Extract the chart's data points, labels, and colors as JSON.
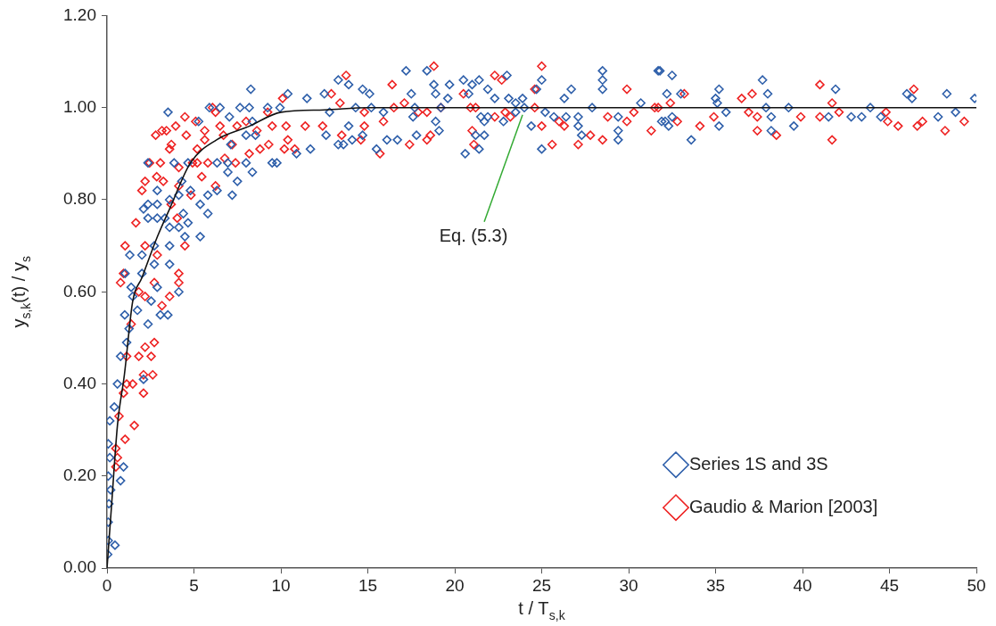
{
  "chart_data": {
    "type": "scatter",
    "xlabel": "t / T$_{s,k}$",
    "ylabel": "y$_{s,k}$(t) / y$_{s}$",
    "xlim": [
      0,
      50
    ],
    "xticks": [
      0,
      5,
      10,
      15,
      20,
      25,
      30,
      35,
      40,
      45,
      50
    ],
    "ylim": [
      0,
      1.2
    ],
    "yticks": [
      {
        "value": 0,
        "label": "0.00"
      },
      {
        "value": 0.2,
        "label": "0.20"
      },
      {
        "value": 0.4,
        "label": "0.40"
      },
      {
        "value": 0.6,
        "label": "0.60"
      },
      {
        "value": 0.8,
        "label": "0.80"
      },
      {
        "value": 1,
        "label": "1.00"
      },
      {
        "value": 1.2,
        "label": "1.20"
      }
    ],
    "grid": false,
    "legend": "bottom right",
    "marker": "diamond",
    "annotations": [
      {
        "text": "Eq. (5.3)",
        "x": 23.9,
        "y": 1.0
      }
    ],
    "series": [
      {
        "name": "Series 1S and 3S",
        "color": "#2e5faa",
        "x": [
          0.04,
          0.07,
          0.46,
          0.07,
          0.11,
          0.21,
          0.07,
          0.78,
          0.95,
          0.07,
          0.16,
          0.16,
          0.42,
          0.6,
          0.78,
          1.13,
          1.27,
          1.02,
          1.48,
          1.75,
          2.1,
          2.36,
          2.54,
          3.07,
          3.5,
          4.13,
          2.89,
          1.39,
          1.04,
          1.31,
          2.01,
          2.01,
          2.72,
          3.6,
          2.72,
          3.6,
          4.48,
          5.36,
          2.1,
          2.36,
          2.89,
          2.36,
          2.89,
          3.33,
          3.6,
          4.13,
          4.66,
          4.39,
          2.89,
          3.6,
          4.13,
          4.3,
          4.8,
          5.36,
          5.8,
          5.8,
          6.33,
          7.2,
          7.5,
          6.95,
          8.36,
          2.36,
          3.86,
          4.66,
          6.33,
          6.95,
          8.0,
          9.5,
          9.77,
          3.51,
          5.27,
          5.89,
          6.5,
          7.65,
          8.18,
          7.04,
          8.36,
          7.12,
          8.0,
          8.54,
          9.24,
          9.95,
          10.4,
          8.27,
          11.5,
          12.5,
          10.9,
          11.7,
          12.6,
          12.8,
          13.3,
          13.3,
          13.9,
          14.7,
          15.1,
          14.3,
          15.2,
          15.9,
          13.9,
          13.6,
          14.1,
          14.7,
          15.5,
          16.1,
          16.7,
          17.2,
          18.4,
          18.8,
          19.7,
          17.5,
          17.7,
          18.9,
          19.6,
          17.6,
          17.8,
          18.9,
          19.1,
          19.2,
          20.5,
          21.0,
          21.4,
          20.8,
          21.9,
          22.3,
          23.0,
          23.1,
          23.5,
          23.9,
          23.5,
          24.0,
          21.5,
          21.7,
          21.9,
          22.8,
          21.2,
          21.7,
          21.4,
          20.6,
          24.4,
          25.0,
          24.7,
          25.2,
          25.7,
          26.4,
          27.1,
          27.1,
          26.3,
          26.7,
          27.3,
          27.9,
          25.0,
          29.4,
          29.4,
          29.4,
          28.5,
          28.5,
          28.5,
          30.7,
          31.7,
          31.9,
          31.8,
          32.5,
          32.2,
          33.0,
          32.1,
          32.3,
          32.5,
          33.6,
          35.0,
          35.2,
          35.1,
          35.6,
          35.2,
          37.7,
          38.0,
          37.9,
          38.2,
          38.2,
          39.2,
          39.5,
          41.5,
          41.9,
          42.8,
          43.4,
          43.9,
          44.5,
          46.0,
          46.3,
          47.8,
          48.3,
          48.8,
          49.9
        ],
        "values": [
          0.03,
          0.06,
          0.05,
          0.1,
          0.14,
          0.17,
          0.2,
          0.19,
          0.22,
          0.27,
          0.24,
          0.32,
          0.35,
          0.4,
          0.46,
          0.49,
          0.52,
          0.55,
          0.59,
          0.56,
          0.41,
          0.53,
          0.58,
          0.55,
          0.55,
          0.6,
          0.61,
          0.61,
          0.64,
          0.68,
          0.68,
          0.64,
          0.66,
          0.66,
          0.7,
          0.7,
          0.72,
          0.72,
          0.78,
          0.79,
          0.79,
          0.76,
          0.76,
          0.76,
          0.74,
          0.74,
          0.75,
          0.77,
          0.82,
          0.8,
          0.81,
          0.84,
          0.82,
          0.79,
          0.77,
          0.81,
          0.82,
          0.81,
          0.84,
          0.86,
          0.86,
          0.88,
          0.88,
          0.88,
          0.88,
          0.88,
          0.88,
          0.88,
          0.88,
          0.99,
          0.97,
          1.0,
          1.0,
          1.0,
          1.0,
          0.98,
          0.97,
          0.92,
          0.94,
          0.94,
          1.0,
          1.0,
          1.03,
          1.04,
          1.02,
          1.03,
          0.9,
          0.91,
          0.94,
          0.99,
          0.92,
          1.06,
          1.05,
          1.04,
          1.03,
          1.0,
          1.0,
          0.99,
          0.96,
          0.92,
          0.93,
          0.94,
          0.91,
          0.93,
          0.93,
          1.08,
          1.08,
          1.05,
          1.05,
          1.03,
          1.0,
          1.03,
          1.02,
          0.98,
          0.94,
          0.97,
          0.95,
          1.0,
          1.06,
          1.05,
          1.06,
          1.03,
          1.04,
          1.02,
          1.07,
          1.02,
          1.01,
          1.02,
          0.99,
          1.0,
          0.98,
          0.97,
          0.98,
          0.97,
          0.94,
          0.94,
          0.91,
          0.9,
          0.96,
          1.06,
          1.04,
          0.99,
          0.98,
          0.98,
          0.98,
          0.96,
          1.02,
          1.04,
          0.94,
          1.0,
          0.91,
          0.95,
          0.93,
          0.98,
          1.08,
          1.06,
          1.04,
          1.01,
          1.08,
          0.97,
          1.08,
          1.07,
          1.03,
          1.03,
          0.97,
          0.96,
          0.98,
          0.93,
          1.02,
          1.04,
          1.01,
          0.99,
          0.96,
          1.06,
          1.03,
          1.0,
          0.98,
          0.95,
          1.0,
          0.96,
          0.98,
          1.04,
          0.98,
          0.98,
          1.0,
          0.98,
          1.03,
          1.02,
          0.98,
          1.03,
          0.99,
          1.02
        ]
      },
      {
        "name": "Gaudio & Marion [2003]",
        "color": "#ee2222",
        "x": [
          0.51,
          0.6,
          0.51,
          0.69,
          1.04,
          1.57,
          0.95,
          1.13,
          1.48,
          2.1,
          2.1,
          2.63,
          1.13,
          1.83,
          2.54,
          2.19,
          2.72,
          1.39,
          1.83,
          2.19,
          2.72,
          3.16,
          3.6,
          4.13,
          4.13,
          0.78,
          0.95,
          1.04,
          2.19,
          2.89,
          4.48,
          1.66,
          4.04,
          3.69,
          2.01,
          4.13,
          4.83,
          6.24,
          2.19,
          2.86,
          3.24,
          5.45,
          2.45,
          3.07,
          4.13,
          4.92,
          5.19,
          5.8,
          6.77,
          7.39,
          8.18,
          8.8,
          9.3,
          10.2,
          10.8,
          2.8,
          3.16,
          3.42,
          3.6,
          3.7,
          3.95,
          4.48,
          4.56,
          5.19,
          5.1,
          5.62,
          5.62,
          6.07,
          6.24,
          6.5,
          6.7,
          7.2,
          7.48,
          8.0,
          8.62,
          9.24,
          9.5,
          10.1,
          10.3,
          10.4,
          11.4,
          12.4,
          12.9,
          13.75,
          18.8,
          16.4,
          13.4,
          14.8,
          14.8,
          13.5,
          14.6,
          15.7,
          15.9,
          16.5,
          17.1,
          17.4,
          17.9,
          18.4,
          18.4,
          18.6,
          19.2,
          20.5,
          20.9,
          21.2,
          21.0,
          21.1,
          22.3,
          22.7,
          22.3,
          22.9,
          23.2,
          24.6,
          25.0,
          24.6,
          25.0,
          26.0,
          26.3,
          25.6,
          27.1,
          27.8,
          28.5,
          28.8,
          29.9,
          29.9,
          30.3,
          31.3,
          31.5,
          31.7,
          32.4,
          33.2,
          32.8,
          34.1,
          34.9,
          36.5,
          37.1,
          36.9,
          37.4,
          37.4,
          38.5,
          39.9,
          41.0,
          41.0,
          41.7,
          41.7,
          42.1,
          44.8,
          44.9,
          45.5,
          46.4,
          46.6,
          46.9,
          48.2,
          49.3
        ],
        "values": [
          0.22,
          0.24,
          0.26,
          0.33,
          0.28,
          0.31,
          0.38,
          0.4,
          0.4,
          0.38,
          0.42,
          0.42,
          0.46,
          0.46,
          0.46,
          0.48,
          0.49,
          0.53,
          0.6,
          0.59,
          0.62,
          0.57,
          0.59,
          0.62,
          0.64,
          0.62,
          0.64,
          0.7,
          0.7,
          0.68,
          0.7,
          0.75,
          0.76,
          0.79,
          0.82,
          0.83,
          0.81,
          0.83,
          0.84,
          0.85,
          0.84,
          0.85,
          0.88,
          0.88,
          0.87,
          0.88,
          0.88,
          0.88,
          0.89,
          0.88,
          0.9,
          0.91,
          0.92,
          0.91,
          0.91,
          0.94,
          0.95,
          0.95,
          0.91,
          0.92,
          0.96,
          0.98,
          0.94,
          0.91,
          0.97,
          0.95,
          0.93,
          1.0,
          0.99,
          0.96,
          0.94,
          0.92,
          0.96,
          0.97,
          0.95,
          0.99,
          0.96,
          1.02,
          0.96,
          0.93,
          0.96,
          0.96,
          1.03,
          1.07,
          1.09,
          1.05,
          1.01,
          0.99,
          0.96,
          0.94,
          0.93,
          0.9,
          0.97,
          1.0,
          1.01,
          0.92,
          0.99,
          0.99,
          0.93,
          0.94,
          1.0,
          1.03,
          1.0,
          1.0,
          0.95,
          0.92,
          1.07,
          1.06,
          0.98,
          0.99,
          0.98,
          1.04,
          1.09,
          1.0,
          0.96,
          0.97,
          0.96,
          0.92,
          0.92,
          0.94,
          0.93,
          0.98,
          1.04,
          0.97,
          0.99,
          0.95,
          1.0,
          1.0,
          1.01,
          1.03,
          0.97,
          0.96,
          0.98,
          1.02,
          1.03,
          0.99,
          0.98,
          0.95,
          0.94,
          0.98,
          1.05,
          0.98,
          1.01,
          0.93,
          0.99,
          0.99,
          0.97,
          0.96,
          1.04,
          0.96,
          0.97,
          0.95,
          0.97
        ]
      },
      {
        "type": "line",
        "color": "#111111",
        "marker": "none",
        "x": [
          0,
          0.25,
          0.6,
          1,
          1.48,
          2,
          2.9,
          3.6,
          4.8,
          6.3,
          8.2,
          10,
          12.5,
          15,
          20,
          30,
          40,
          50
        ],
        "values": [
          0,
          0.13,
          0.31,
          0.42,
          0.58,
          0.63,
          0.72,
          0.78,
          0.88,
          0.93,
          0.96,
          0.99,
          0.995,
          1,
          1,
          1,
          1,
          1
        ]
      }
    ]
  }
}
